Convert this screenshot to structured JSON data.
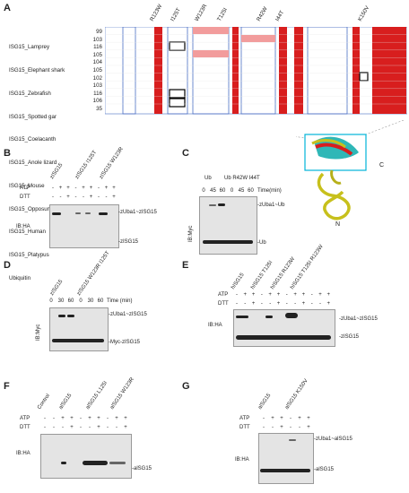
{
  "panels": {
    "A": {
      "label": "A",
      "species": [
        "ISG15_Lamprey",
        "ISG15_Elephant shark",
        "ISG15_Zebrafish",
        "ISG15_Spotted gar",
        "ISG15_Coelacanth",
        "ISG15_Anole lizard",
        "ISG15_Mouse",
        "ISG15_Opposum",
        "ISG15_Human",
        "ISG15_Platypus",
        "Ubiquitin"
      ],
      "positions": [
        "99",
        "103",
        "116",
        "105",
        "104",
        "105",
        "102",
        "103",
        "116",
        "106",
        "35"
      ],
      "mutations": [
        "R123W",
        "I125T",
        "W123R",
        "T125I",
        "R42W",
        "I44T",
        "K150V"
      ],
      "structure_labels": {
        "c_term": "C",
        "n_term": "N"
      }
    },
    "B": {
      "label": "B",
      "lanes": [
        "zISG15",
        "zISG15 I125T",
        "zISG15 W123R"
      ],
      "rows": {
        "atp": "ATP",
        "dtt": "DTT",
        "atp_signs": [
          "-",
          "+",
          "+",
          "-",
          "+",
          "+",
          "-",
          "+",
          "+"
        ],
        "dtt_signs": [
          "-",
          "-",
          "+",
          "-",
          "-",
          "+",
          "-",
          "-",
          "+"
        ]
      },
      "ib": "IB:HA",
      "bands": [
        "-zUba1~zISG15",
        "-zISG15"
      ]
    },
    "C": {
      "label": "C",
      "lanes": [
        "Ub",
        "Ub R42W I44T"
      ],
      "time_label": "Time(min)",
      "times": [
        "0",
        "45",
        "60",
        "0",
        "45",
        "60"
      ],
      "ib": "IB:Myc",
      "bands": [
        "-zUba1~Ub",
        "-Ub"
      ]
    },
    "D": {
      "label": "D",
      "lanes": [
        "zISG15",
        "zISG15 W123R I125T"
      ],
      "time_label": "Time (min)",
      "times": [
        "0",
        "30",
        "60",
        "0",
        "30",
        "60"
      ],
      "ib": "IB:Myc",
      "bands": [
        "-zUba1~zISG15",
        "-Myc-zISG15"
      ]
    },
    "E": {
      "label": "E",
      "lanes": [
        "hISG15",
        "hISG15 T125I",
        "hISG15 R123W",
        "hISG15 T125I R123W"
      ],
      "rows": {
        "atp": "ATP",
        "dtt": "DTT",
        "atp_signs": [
          "-",
          "+",
          "+",
          "-",
          "+",
          "+",
          "-",
          "+",
          "+",
          "-",
          "+",
          "+"
        ],
        "dtt_signs": [
          "-",
          "-",
          "+",
          "-",
          "-",
          "+",
          "-",
          "-",
          "+",
          "-",
          "-",
          "+"
        ]
      },
      "ib": "IB:HA",
      "bands": [
        "-zUba1~zISG15",
        "-zISG15"
      ]
    },
    "F": {
      "label": "F",
      "lanes": [
        "Control",
        "alSG15",
        "alSG15 L125I",
        "alSG15 W123R"
      ],
      "rows": {
        "atp": "ATP",
        "dtt": "DTT",
        "atp_signs": [
          "-",
          "-",
          "+",
          "+",
          "-",
          "+",
          "+",
          "-",
          "+",
          "+"
        ],
        "dtt_signs": [
          "-",
          "-",
          "-",
          "+",
          "-",
          "-",
          "+",
          "-",
          "-",
          "+"
        ]
      },
      "ib": "IB:HA",
      "bands": [
        "-alSG15"
      ]
    },
    "G": {
      "label": "G",
      "lanes": [
        "alSG15",
        "alSG15 K150V"
      ],
      "rows": {
        "atp": "ATP",
        "dtt": "DTT",
        "atp_signs": [
          "-",
          "+",
          "+",
          "-",
          "+",
          "+"
        ],
        "dtt_signs": [
          "-",
          "-",
          "+",
          "-",
          "-",
          "+"
        ]
      },
      "ib": "IB:HA",
      "bands": [
        "-zUba1~alSG15",
        "-alSG15"
      ]
    }
  },
  "colors": {
    "conserved": "#d81e1e",
    "similar_box": "#4a6fc4",
    "helix": "#c7c01c",
    "highlight": "#00b4d8"
  }
}
